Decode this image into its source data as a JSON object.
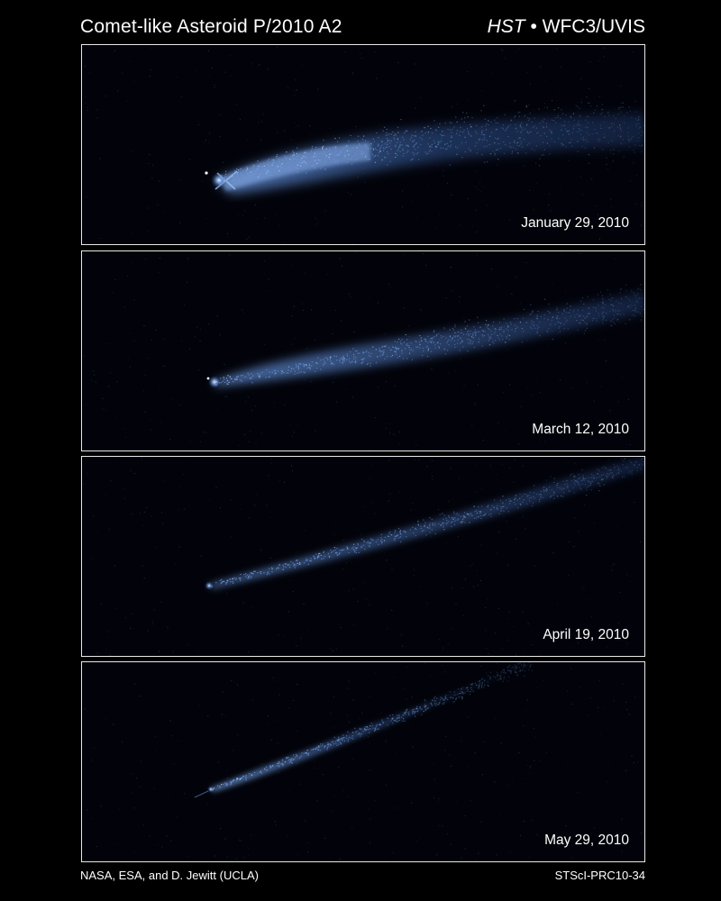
{
  "title": "Comet-like Asteroid P/2010 A2",
  "instrument": {
    "telescope": "HST",
    "separator": " • ",
    "camera": "WFC3/UVIS"
  },
  "panels": [
    {
      "date": "January 29, 2010"
    },
    {
      "date": "March 12, 2010"
    },
    {
      "date": "April 19, 2010"
    },
    {
      "date": "May 29, 2010"
    }
  ],
  "credit": "NASA, ESA, and D. Jewitt (UCLA)",
  "release_id": "STScI-PRC10-34",
  "colors": {
    "background": "#000000",
    "panel_background": "#02030a",
    "tail": "#4a7fd0",
    "nucleus": "#dbe8ff",
    "border": "#e8e8e8"
  }
}
